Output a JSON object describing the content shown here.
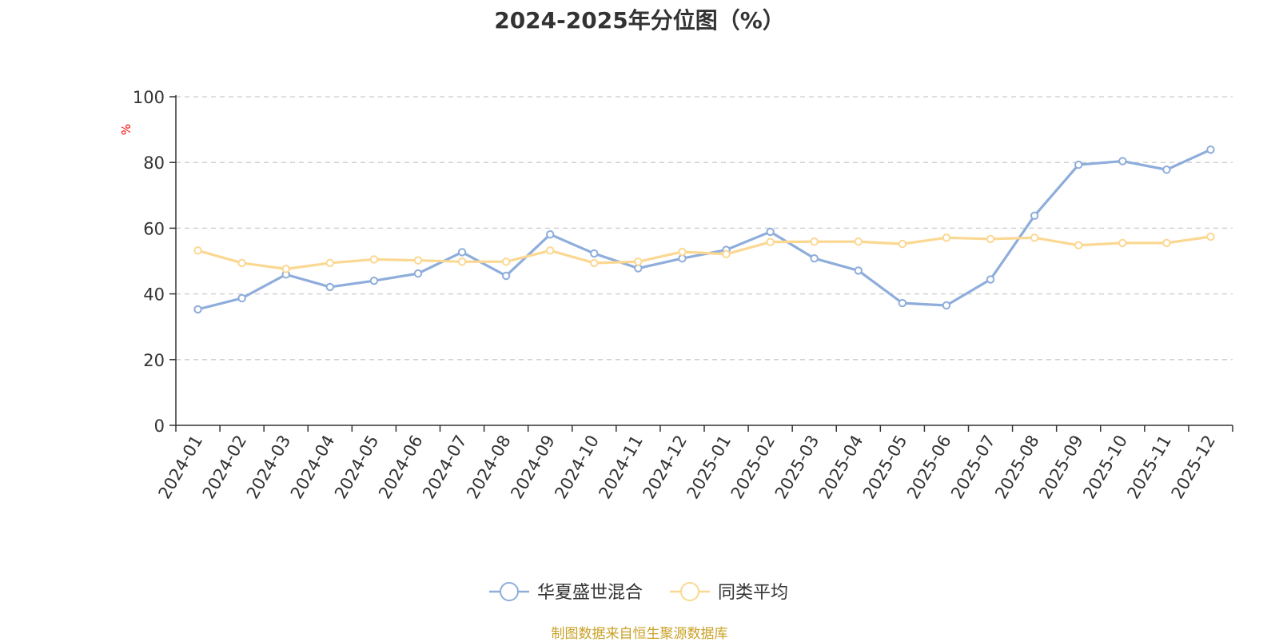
{
  "chart_data": {
    "type": "line",
    "title": "2024-2025年分位图（%）",
    "ylabel": "%",
    "xlabel": "",
    "ylim": [
      0,
      100
    ],
    "yticks": [
      0,
      20,
      40,
      60,
      80,
      100
    ],
    "grid": true,
    "legend_position": "bottom",
    "categories": [
      "2024-01",
      "2024-02",
      "2024-03",
      "2024-04",
      "2024-05",
      "2024-06",
      "2024-07",
      "2024-08",
      "2024-09",
      "2024-10",
      "2024-11",
      "2024-12",
      "2025-01",
      "2025-02",
      "2025-03",
      "2025-04",
      "2025-05",
      "2025-06",
      "2025-07",
      "2025-08",
      "2025-09",
      "2025-10",
      "2025-11",
      "2025-12"
    ],
    "series": [
      {
        "name": "华夏盛世混合",
        "color": "#8eaddb",
        "values": [
          35.3,
          38.7,
          45.9,
          42.1,
          44.0,
          46.2,
          52.7,
          45.5,
          58.1,
          52.3,
          47.8,
          50.8,
          53.4,
          58.9,
          50.8,
          47.1,
          37.2,
          36.5,
          44.4,
          63.8,
          79.3,
          80.4,
          77.8,
          83.9
        ]
      },
      {
        "name": "同类平均",
        "color": "#fbd892",
        "values": [
          53.2,
          49.4,
          47.6,
          49.4,
          50.5,
          50.2,
          49.8,
          49.8,
          53.2,
          49.4,
          49.8,
          52.8,
          52.1,
          55.8,
          55.9,
          55.9,
          55.2,
          57.1,
          56.7,
          57.1,
          54.8,
          55.5,
          55.5,
          57.4
        ]
      }
    ]
  },
  "axis_colors": {
    "axis": "#333333",
    "grid": "#cccccc",
    "ylabel": "#ff0000"
  },
  "source_note": "制图数据来自恒生聚源数据库"
}
